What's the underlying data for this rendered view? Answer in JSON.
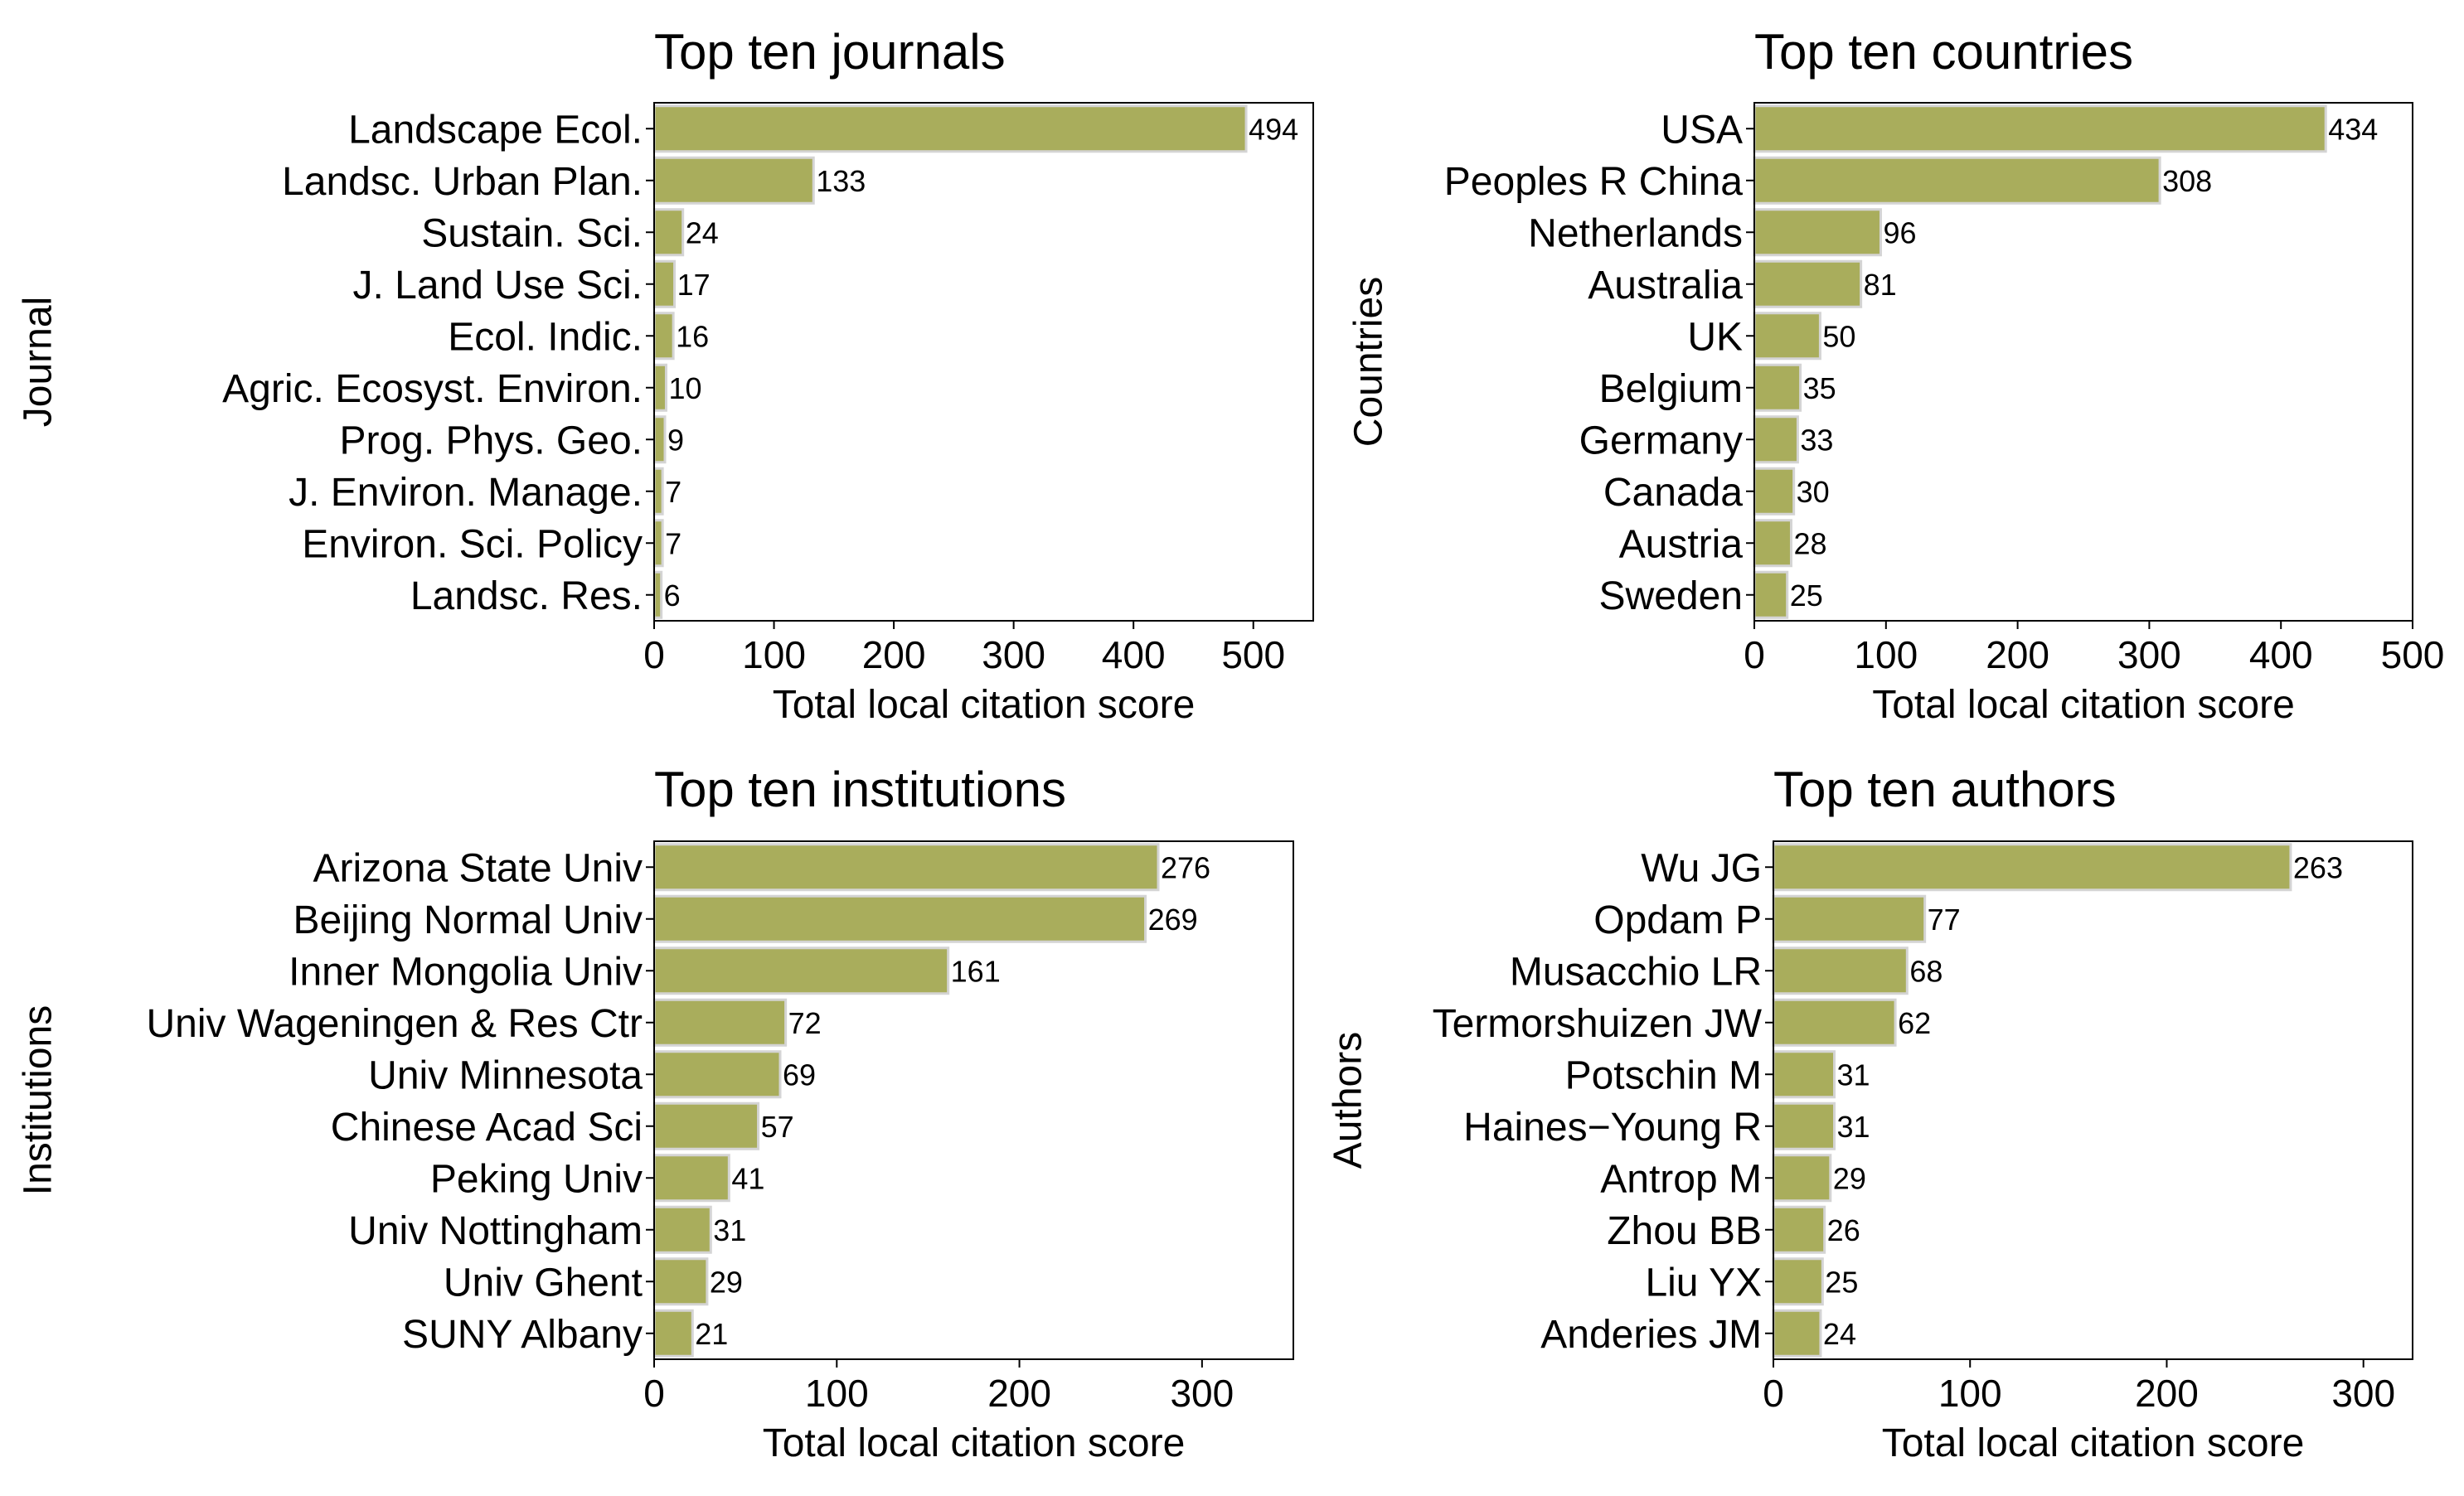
{
  "chart_data": [
    {
      "type": "bar",
      "orientation": "horizontal",
      "title": "Top ten journals",
      "xlabel": "Total local citation score",
      "ylabel": "Journal",
      "xlim": [
        0,
        550
      ],
      "xticks": [
        0,
        100,
        200,
        300,
        400,
        500
      ],
      "categories": [
        "Landscape Ecol.",
        "Landsc. Urban Plan.",
        "Sustain. Sci.",
        "J. Land Use Sci.",
        "Ecol. Indic.",
        "Agric. Ecosyst. Environ.",
        "Prog. Phys. Geo.",
        "J. Environ. Manage.",
        "Environ. Sci. Policy",
        "Landsc. Res."
      ],
      "values": [
        494,
        133,
        24,
        17,
        16,
        10,
        9,
        7,
        7,
        6
      ],
      "bar_color": "#a9ad5c",
      "grid": false
    },
    {
      "type": "bar",
      "orientation": "horizontal",
      "title": "Top ten countries",
      "xlabel": "Total local citation score",
      "ylabel": "Countries",
      "xlim": [
        0,
        500
      ],
      "xticks": [
        0,
        100,
        200,
        300,
        400,
        500
      ],
      "categories": [
        "USA",
        "Peoples R China",
        "Netherlands",
        "Australia",
        "UK",
        "Belgium",
        "Germany",
        "Canada",
        "Austria",
        "Sweden"
      ],
      "values": [
        434,
        308,
        96,
        81,
        50,
        35,
        33,
        30,
        28,
        25
      ],
      "bar_color": "#a9ad5c",
      "grid": false
    },
    {
      "type": "bar",
      "orientation": "horizontal",
      "title": "Top ten institutions",
      "xlabel": "Total local citation score",
      "ylabel": "Institutions",
      "xlim": [
        0,
        350
      ],
      "xticks": [
        0,
        100,
        200,
        300
      ],
      "categories": [
        "Arizona State Univ",
        "Beijing Normal Univ",
        "Inner Mongolia Univ",
        "Univ Wageningen & Res Ctr",
        "Univ Minnesota",
        "Chinese Acad Sci",
        "Peking Univ",
        "Univ Nottingham",
        "Univ Ghent",
        "SUNY Albany"
      ],
      "values": [
        276,
        269,
        161,
        72,
        69,
        57,
        41,
        31,
        29,
        21
      ],
      "bar_color": "#a9ad5c",
      "grid": false
    },
    {
      "type": "bar",
      "orientation": "horizontal",
      "title": "Top ten authors",
      "xlabel": "Total local citation score",
      "ylabel": "Authors",
      "xlim": [
        0,
        325
      ],
      "xticks": [
        0,
        100,
        200,
        300
      ],
      "categories": [
        "Wu JG",
        "Opdam P",
        "Musacchio LR",
        "Termorshuizen JW",
        "Potschin M",
        "Haines−Young R",
        "Antrop M",
        "Zhou BB",
        "Liu YX",
        "Anderies JM"
      ],
      "values": [
        263,
        77,
        68,
        62,
        31,
        31,
        29,
        26,
        25,
        24
      ],
      "bar_color": "#a9ad5c",
      "grid": false
    }
  ]
}
